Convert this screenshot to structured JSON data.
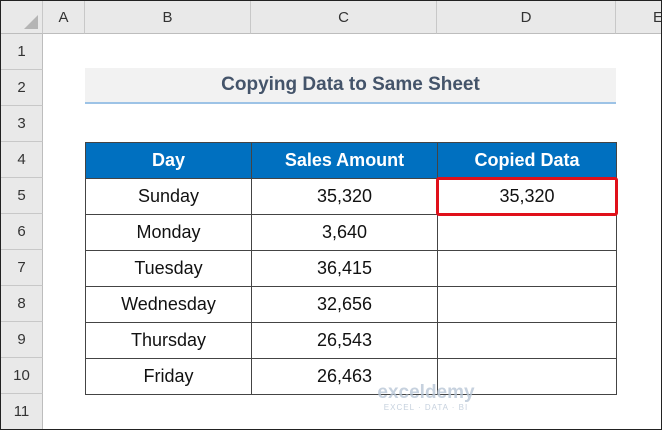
{
  "columns": [
    "A",
    "B",
    "C",
    "D",
    "E"
  ],
  "rows": [
    1,
    2,
    3,
    4,
    5,
    6,
    7,
    8,
    9,
    10,
    11
  ],
  "title": "Copying Data to Same Sheet",
  "table": {
    "header": [
      "Day",
      "Sales Amount",
      "Copied Data"
    ],
    "rows": [
      [
        "Sunday",
        "35,320",
        "35,320"
      ],
      [
        "Monday",
        "3,640"
      ],
      [
        "Tuesday",
        "36,415"
      ],
      [
        "Wednesday",
        "32,656"
      ],
      [
        "Thursday",
        "26,543"
      ],
      [
        "Friday",
        "26,463"
      ]
    ]
  },
  "watermark": {
    "name": "exceldemy",
    "tagline": "EXCEL · DATA · BI"
  }
}
